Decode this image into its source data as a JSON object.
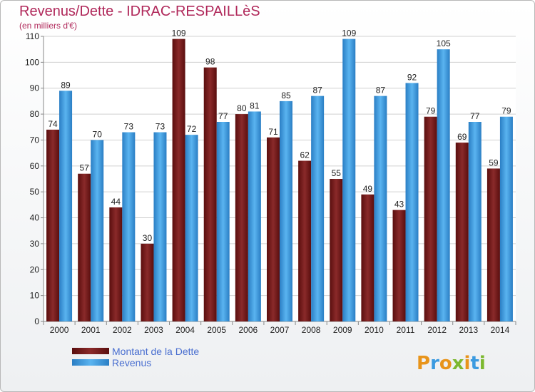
{
  "chart_data": {
    "type": "bar",
    "title": "Revenus/Dette - IDRAC-RESPAILLèS",
    "subtitle": "(en milliers d'€)",
    "categories": [
      "2000",
      "2001",
      "2002",
      "2003",
      "2004",
      "2005",
      "2006",
      "2007",
      "2008",
      "2009",
      "2010",
      "2011",
      "2012",
      "2013",
      "2014"
    ],
    "series": [
      {
        "name": "Montant de la Dette",
        "color": "#7a1f1f",
        "values": [
          74,
          57,
          44,
          30,
          109,
          98,
          80,
          71,
          62,
          55,
          49,
          43,
          79,
          69,
          59
        ]
      },
      {
        "name": "Revenus",
        "color": "#3a9ae0",
        "values": [
          89,
          70,
          73,
          73,
          72,
          77,
          81,
          85,
          87,
          109,
          87,
          92,
          105,
          77,
          79
        ]
      }
    ],
    "ylim": [
      0,
      110
    ],
    "yticks": [
      0,
      10,
      20,
      30,
      40,
      50,
      60,
      70,
      80,
      90,
      100,
      110
    ],
    "grid": true,
    "legend_position": "bottom-left"
  },
  "logo": {
    "letters": [
      "P",
      "r",
      "o",
      "x",
      "i",
      "t",
      "i"
    ],
    "colors": [
      "#e8941a",
      "#3a9ae0",
      "#e8941a",
      "#7cb82f",
      "#e8941a",
      "#3a9ae0",
      "#7cb82f"
    ]
  }
}
